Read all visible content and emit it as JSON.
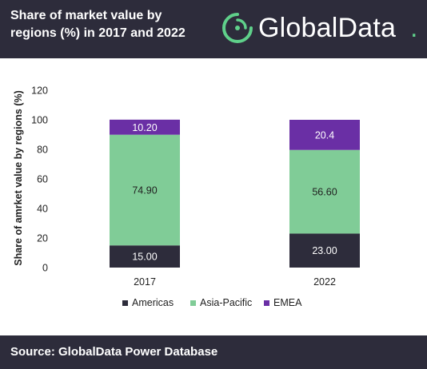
{
  "header": {
    "title": "Share of market value by regions (%) in 2017 and 2022"
  },
  "logo": {
    "text": "GlobalData",
    "dot": "."
  },
  "footer": {
    "source": "Source: GlobalData Power Database"
  },
  "colors": {
    "header_bg": "#2d2c3b",
    "americas": "#2d2c3b",
    "asia_pacific": "#80cc97",
    "emea": "#6a2fa5",
    "logo_green": "#5fd08a"
  },
  "chart_data": {
    "type": "bar",
    "stacked": true,
    "title": "",
    "xlabel": "",
    "ylabel": "Share of amrket value by regions (%)",
    "categories": [
      "2017",
      "2022"
    ],
    "ylim": [
      0,
      120
    ],
    "yticks": [
      0,
      20,
      40,
      60,
      80,
      100,
      120
    ],
    "grid": false,
    "legend_position": "bottom",
    "series": [
      {
        "name": "Americas",
        "color": "#2d2c3b",
        "label_color": "#ffffff",
        "values": [
          15.0,
          23.0
        ],
        "labels": [
          "15.00",
          "23.00"
        ]
      },
      {
        "name": "Asia-Pacific",
        "color": "#80cc97",
        "label_color": "#1f1f1f",
        "values": [
          74.9,
          56.6
        ],
        "labels": [
          "74.90",
          "56.60"
        ]
      },
      {
        "name": "EMEA",
        "color": "#6a2fa5",
        "label_color": "#ffffff",
        "values": [
          10.2,
          20.4
        ],
        "labels": [
          "10.20",
          "20.4"
        ]
      }
    ]
  }
}
